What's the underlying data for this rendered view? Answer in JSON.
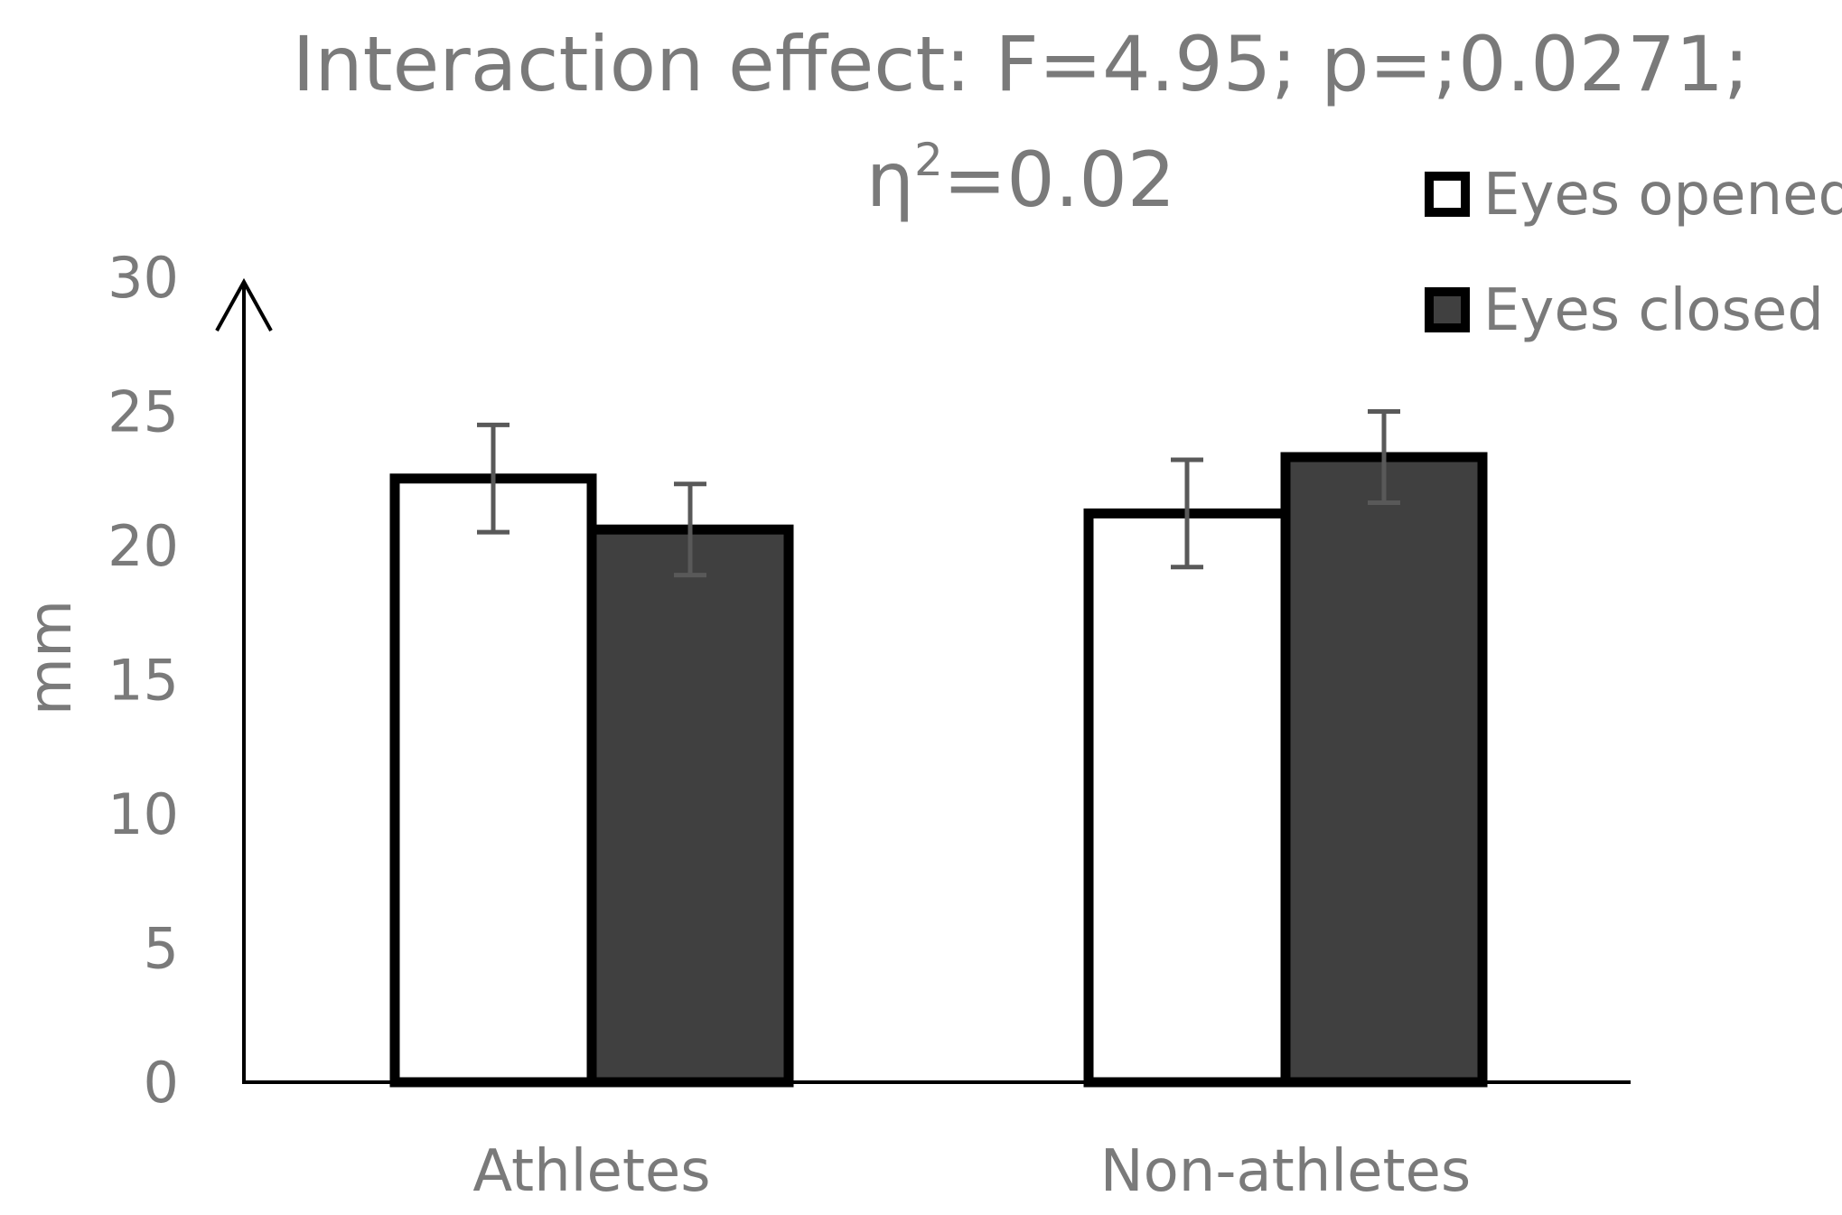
{
  "chart_data": {
    "type": "bar",
    "title_line1": "Interaction effect: F=4.95; p=;0.0271;",
    "title_line2_base": "η",
    "title_line2_sup": "2",
    "title_line2_rest": "=0.02",
    "ylabel": "mm",
    "xlabel": "",
    "ylim": [
      0,
      30
    ],
    "yticks": [
      0,
      5,
      10,
      15,
      20,
      25,
      30
    ],
    "categories": [
      "Athletes",
      "Non-athletes"
    ],
    "series": [
      {
        "name": "Eyes opened",
        "values": [
          22.5,
          21.2
        ],
        "errors": [
          2.0,
          2.0
        ],
        "color": "#ffffff"
      },
      {
        "name": "Eyes closed",
        "values": [
          20.6,
          23.3
        ],
        "errors": [
          1.7,
          1.7
        ],
        "color": "#404040"
      }
    ],
    "legend_position": "top-right",
    "colors": {
      "text": "#7a7a7a",
      "bar_outline": "#000000",
      "error_bar": "#595959",
      "axis": "#000000"
    }
  }
}
